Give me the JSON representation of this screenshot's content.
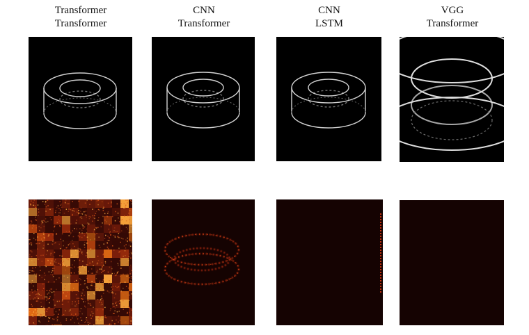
{
  "figure": {
    "columns": [
      {
        "encoder": "Transformer",
        "decoder": "Transformer"
      },
      {
        "encoder": "CNN",
        "decoder": "Transformer"
      },
      {
        "encoder": "CNN",
        "decoder": "LSTM"
      },
      {
        "encoder": "VGG",
        "decoder": "Transformer"
      }
    ],
    "rows": [
      {
        "content": "reconstructed wireframe torus (white lines on black)"
      },
      {
        "content": "error heatmap (red/orange on black)"
      }
    ],
    "colors": {
      "background": "#000000",
      "line": "#d9d9d9",
      "heat": "#ff8a1c",
      "heat_dark": "#1a0402"
    }
  }
}
